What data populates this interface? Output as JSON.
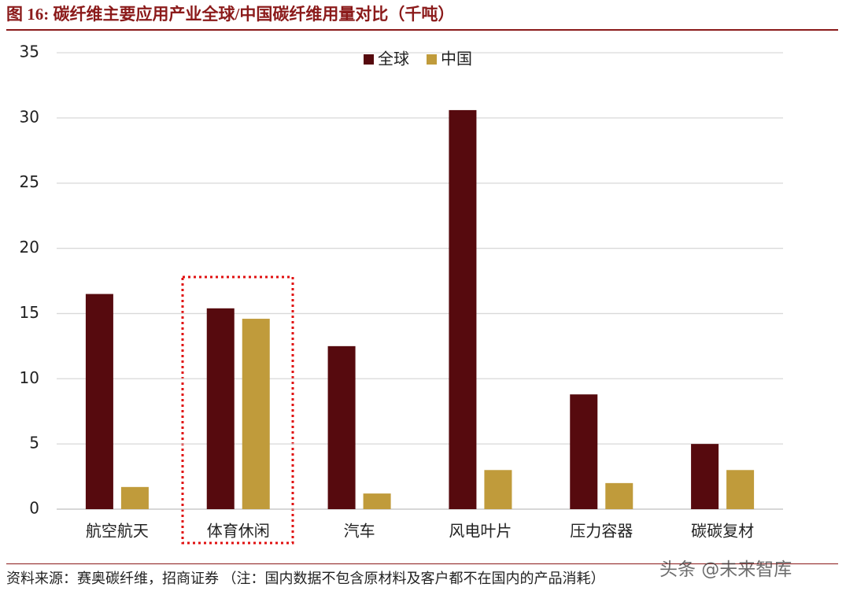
{
  "chart_data": {
    "type": "bar",
    "title": "图 16:  碳纤维主要应用产业全球/中国碳纤维用量对比（千吨）",
    "categories": [
      "航空航天",
      "体育休闲",
      "汽车",
      "风电叶片",
      "压力容器",
      "碳碳复材"
    ],
    "series": [
      {
        "name": "全球",
        "color": "#560a0e",
        "values": [
          16.5,
          15.4,
          12.5,
          30.6,
          8.8,
          5.0
        ]
      },
      {
        "name": "中国",
        "color": "#c09b3b",
        "values": [
          1.7,
          14.6,
          1.2,
          3.0,
          2.0,
          3.0
        ]
      }
    ],
    "ylim": [
      0,
      35
    ],
    "yticks": [
      0,
      5,
      10,
      15,
      20,
      25,
      30,
      35
    ],
    "grid": true,
    "legend": "top",
    "source": "资料来源：赛奥碳纤维，招商证券 （注：国内数据不包含原材料及客户都不在国内的产品消耗）",
    "watermark": "头条 @未来智库"
  }
}
